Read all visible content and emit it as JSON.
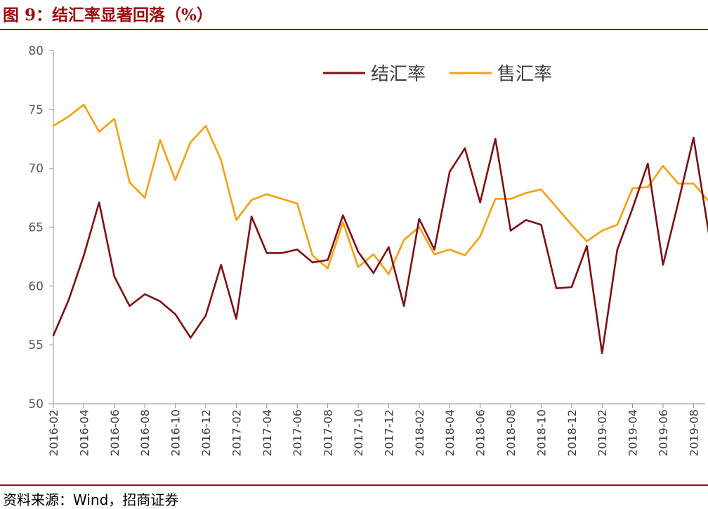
{
  "figure": {
    "title": "图 9：结汇率显著回落（%）",
    "source": "资料来源：Wind，招商证券"
  },
  "chart_data": {
    "type": "line",
    "title": "结汇率显著回落（%）",
    "xlabel": "",
    "ylabel": "",
    "ylim": [
      50,
      80
    ],
    "yticks": [
      50,
      55,
      60,
      65,
      70,
      75,
      80
    ],
    "grid": false,
    "legend_position": "top-right",
    "x": [
      "2016-02",
      "2016-03",
      "2016-04",
      "2016-05",
      "2016-06",
      "2016-07",
      "2016-08",
      "2016-09",
      "2016-10",
      "2016-11",
      "2016-12",
      "2017-01",
      "2017-02",
      "2017-03",
      "2017-04",
      "2017-05",
      "2017-06",
      "2017-07",
      "2017-08",
      "2017-09",
      "2017-10",
      "2017-11",
      "2017-12",
      "2018-01",
      "2018-02",
      "2018-03",
      "2018-04",
      "2018-05",
      "2018-06",
      "2018-07",
      "2018-08",
      "2018-09",
      "2018-10",
      "2018-11",
      "2018-12",
      "2019-01",
      "2019-02",
      "2019-03",
      "2019-04",
      "2019-05",
      "2019-06",
      "2019-07",
      "2019-08",
      "2019-09"
    ],
    "xtick_labels": [
      "2016-02",
      "2016-04",
      "2016-06",
      "2016-08",
      "2016-10",
      "2016-12",
      "2017-02",
      "2017-04",
      "2017-06",
      "2017-08",
      "2017-10",
      "2017-12",
      "2018-02",
      "2018-04",
      "2018-06",
      "2018-08",
      "2018-10",
      "2018-12",
      "2019-02",
      "2019-04",
      "2019-06",
      "2019-08"
    ],
    "series": [
      {
        "name": "结汇率",
        "color": "#7f0f12",
        "values": [
          55.8,
          58.8,
          62.6,
          67.1,
          60.8,
          58.3,
          59.3,
          58.7,
          57.6,
          55.6,
          57.5,
          61.8,
          57.2,
          65.9,
          62.8,
          62.8,
          63.1,
          62.0,
          62.2,
          66.0,
          62.9,
          61.1,
          63.3,
          58.3,
          65.7,
          63.1,
          69.7,
          71.7,
          67.1,
          72.5,
          64.7,
          65.6,
          65.2,
          59.8,
          59.9,
          63.4,
          54.3,
          63.1,
          66.6,
          70.4,
          61.8,
          67.1,
          72.6,
          64.5
        ]
      },
      {
        "name": "售汇率",
        "color": "#f5a00f",
        "values": [
          73.6,
          74.4,
          75.4,
          73.1,
          74.2,
          68.8,
          67.5,
          72.4,
          69.0,
          72.2,
          73.6,
          70.7,
          65.6,
          67.3,
          67.8,
          67.4,
          67.0,
          62.6,
          61.5,
          65.4,
          61.6,
          62.7,
          61.0,
          63.9,
          65.0,
          62.7,
          63.1,
          62.6,
          64.2,
          67.4,
          67.4,
          67.9,
          68.2,
          66.7,
          65.2,
          63.8,
          64.7,
          65.2,
          68.3,
          68.4,
          70.2,
          68.7,
          68.7,
          67.2
        ]
      }
    ]
  }
}
